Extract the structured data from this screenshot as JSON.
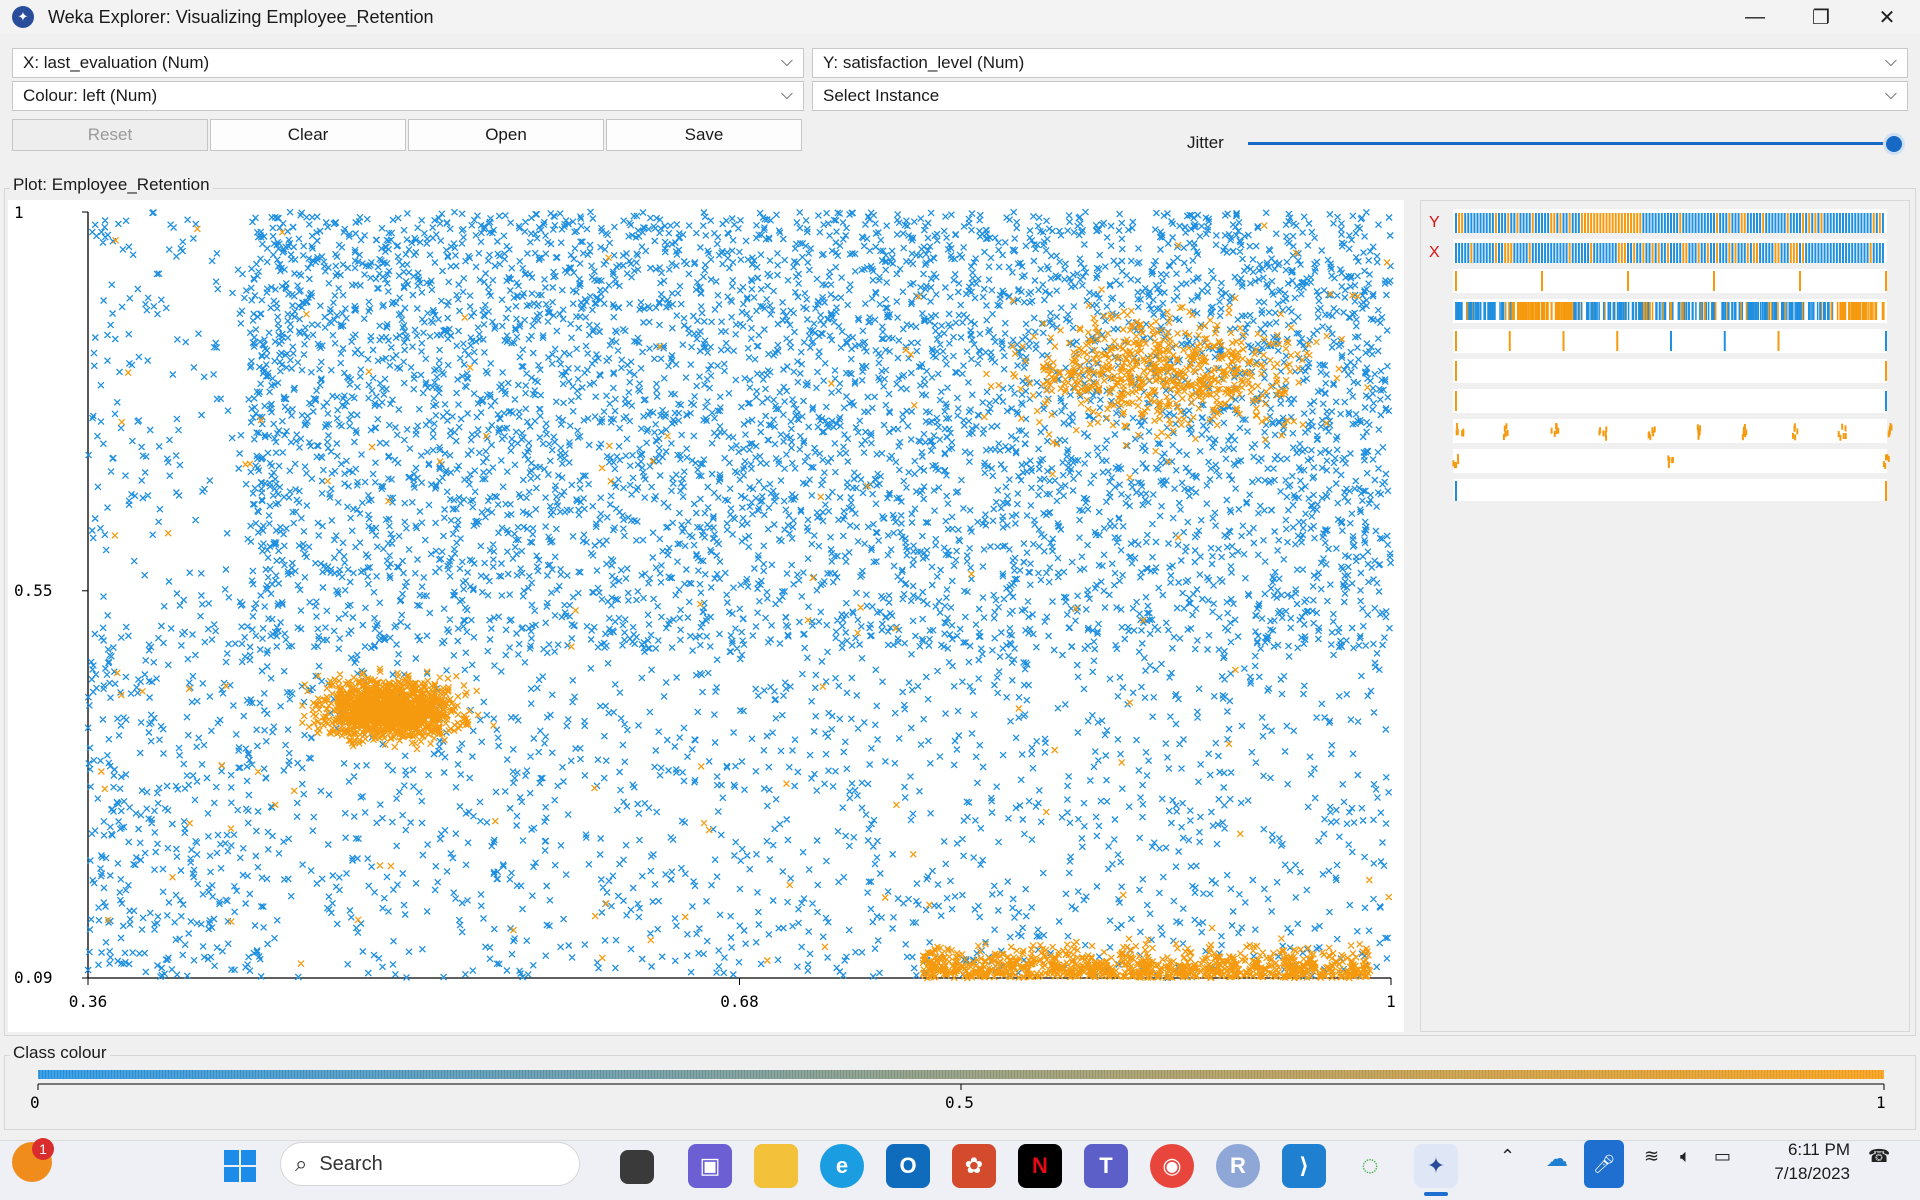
{
  "window": {
    "title": "Weka Explorer: Visualizing Employee_Retention",
    "controls": [
      "minimize-icon",
      "restore-icon",
      "close-icon"
    ]
  },
  "selectors": {
    "x_axis": "X: last_evaluation (Num)",
    "y_axis": "Y: satisfaction_level (Num)",
    "colour": "Colour: left (Num)",
    "instance": "Select Instance"
  },
  "buttons": {
    "reset": "Reset",
    "clear": "Clear",
    "open": "Open",
    "save": "Save"
  },
  "jitter": {
    "label": "Jitter",
    "value": 1.0
  },
  "plot": {
    "group_title": "Plot: Employee_Retention",
    "y_ticks": [
      "1",
      "0.55",
      "0.09"
    ],
    "x_ticks": [
      "0.36",
      "0.68",
      "1"
    ]
  },
  "attribute_panel": {
    "y_marker": "Y",
    "x_marker": "X",
    "rows": 10
  },
  "class_colour": {
    "title": "Class colour",
    "ticks": [
      "0",
      "0.5",
      "1"
    ],
    "low_color": "#1f8fe0",
    "high_color": "#f59a0e"
  },
  "colors": {
    "stayed": "#1f8fe0",
    "left": "#f59a0e"
  },
  "chart_data": {
    "type": "scatter",
    "title": "",
    "xlabel": "last_evaluation",
    "ylabel": "satisfaction_level",
    "xlim": [
      0.36,
      1
    ],
    "ylim": [
      0.09,
      1
    ],
    "colour_by": "left",
    "series": [
      {
        "name": "0",
        "description_clusters": [
          {
            "x_range": [
              0.45,
              1.0
            ],
            "y_range": [
              0.5,
              1.0
            ],
            "density": "high"
          },
          {
            "x_range": [
              0.36,
              1.0
            ],
            "y_range": [
              0.09,
              0.5
            ],
            "density": "medium"
          }
        ]
      },
      {
        "name": "1",
        "description_clusters": [
          {
            "x_range": [
              0.45,
              0.57
            ],
            "y_range": [
              0.35,
              0.47
            ],
            "density": "high"
          },
          {
            "x_range": [
              0.77,
              1.0
            ],
            "y_range": [
              0.7,
              0.92
            ],
            "density": "medium"
          },
          {
            "x_range": [
              0.76,
              1.0
            ],
            "y_range": [
              0.09,
              0.12
            ],
            "density": "high"
          }
        ]
      }
    ]
  },
  "taskbar": {
    "search_placeholder": "Search",
    "notification_count": "1",
    "time": "6:11 PM",
    "date": "7/18/2023",
    "apps": [
      "windows-start-icon",
      "search-icon",
      "task-view-icon",
      "teams-chat-icon",
      "file-explorer-icon",
      "edge-icon",
      "outlook-icon",
      "app-store-icon",
      "netflix-icon",
      "teams-icon",
      "chrome-icon",
      "r-icon",
      "vscode-icon",
      "spinner-app-icon",
      "weka-icon"
    ]
  }
}
